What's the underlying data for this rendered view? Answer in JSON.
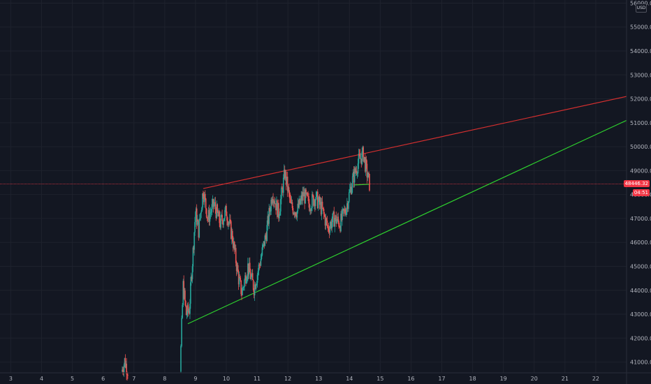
{
  "currency_badge": "USD",
  "current_price_label": "48446.32",
  "countdown_label": "04:51",
  "colors": {
    "background": "#131722",
    "grid": "#1e222d",
    "up": "#26a69a",
    "down": "#ef5350",
    "resistance": "#d32f2f",
    "support": "#2ed12e",
    "price_line": "#f23645"
  },
  "chart_data": {
    "type": "candlestick",
    "x_ticks": [
      "3",
      "4",
      "5",
      "6",
      "7",
      "8",
      "9",
      "10",
      "11",
      "12",
      "13",
      "14",
      "15",
      "16",
      "17",
      "18",
      "19",
      "20",
      "21",
      "22"
    ],
    "y_ticks": [
      "41000.00",
      "42000.00",
      "43000.00",
      "44000.00",
      "45000.00",
      "46000.00",
      "47000.00",
      "48000.00",
      "49000.00",
      "50000.00",
      "51000.00",
      "52000.00",
      "53000.00",
      "54000.00",
      "55000.00",
      "56000.00"
    ],
    "x_range": [
      2.65,
      23.0
    ],
    "y_range": [
      40550,
      56130
    ],
    "current_price": 48446.32,
    "price_path": [
      [
        6.6,
        40600
      ],
      [
        6.7,
        41050
      ],
      [
        6.8,
        40650
      ],
      [
        8.5,
        40600
      ],
      [
        8.55,
        42500
      ],
      [
        8.6,
        44200
      ],
      [
        8.7,
        43000
      ],
      [
        8.8,
        43200
      ],
      [
        8.9,
        45200
      ],
      [
        9.0,
        47300
      ],
      [
        9.1,
        46500
      ],
      [
        9.25,
        48200
      ],
      [
        9.4,
        47000
      ],
      [
        9.6,
        47600
      ],
      [
        9.8,
        46800
      ],
      [
        10.0,
        47300
      ],
      [
        10.2,
        46200
      ],
      [
        10.4,
        44500
      ],
      [
        10.5,
        43900
      ],
      [
        10.7,
        45000
      ],
      [
        10.9,
        44100
      ],
      [
        11.1,
        45200
      ],
      [
        11.3,
        46400
      ],
      [
        11.5,
        48100
      ],
      [
        11.7,
        47200
      ],
      [
        11.9,
        48900
      ],
      [
        12.1,
        47500
      ],
      [
        12.3,
        47300
      ],
      [
        12.5,
        48000
      ],
      [
        12.7,
        47600
      ],
      [
        12.9,
        47900
      ],
      [
        13.1,
        47400
      ],
      [
        13.3,
        46600
      ],
      [
        13.5,
        47000
      ],
      [
        13.7,
        46800
      ],
      [
        13.9,
        47500
      ],
      [
        14.1,
        48600
      ],
      [
        14.3,
        49400
      ],
      [
        14.45,
        49700
      ],
      [
        14.55,
        49000
      ],
      [
        14.65,
        48446
      ]
    ],
    "trendlines": [
      {
        "name": "resistance",
        "from": [
          9.25,
          48250
        ],
        "to": [
          23.0,
          52100
        ]
      },
      {
        "name": "support",
        "from": [
          8.75,
          42600
        ],
        "to": [
          23.0,
          51100
        ]
      },
      {
        "name": "support-short",
        "from": [
          14.15,
          48400
        ],
        "to": [
          14.65,
          48430
        ]
      }
    ]
  }
}
